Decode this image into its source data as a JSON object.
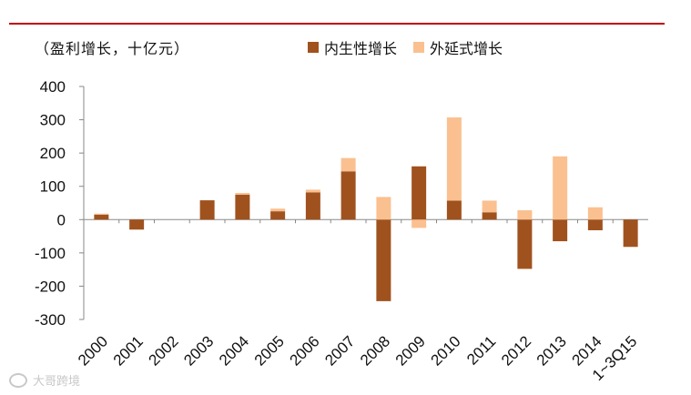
{
  "chart_data": {
    "type": "bar",
    "stacked": true,
    "unit_label": "（盈利增长，十亿元）",
    "categories": [
      "2000",
      "2001",
      "2002",
      "2003",
      "2004",
      "2005",
      "2006",
      "2007",
      "2008",
      "2009",
      "2010",
      "2011",
      "2012",
      "2013",
      "2014",
      "1~3Q15"
    ],
    "series": [
      {
        "name": "内生性增长",
        "color": "#a0521e",
        "values": [
          15,
          -30,
          0,
          58,
          75,
          25,
          82,
          145,
          -245,
          160,
          57,
          22,
          -148,
          -65,
          -32,
          -82
        ]
      },
      {
        "name": "外延式增长",
        "color": "#fac090",
        "values": [
          3,
          0,
          0,
          0,
          5,
          8,
          8,
          40,
          68,
          -25,
          250,
          35,
          28,
          190,
          37,
          0
        ]
      }
    ],
    "ylim": [
      -300,
      400
    ],
    "yticks": [
      400,
      300,
      200,
      100,
      0,
      -100,
      -200,
      -300
    ]
  },
  "watermark": "大哥跨境"
}
